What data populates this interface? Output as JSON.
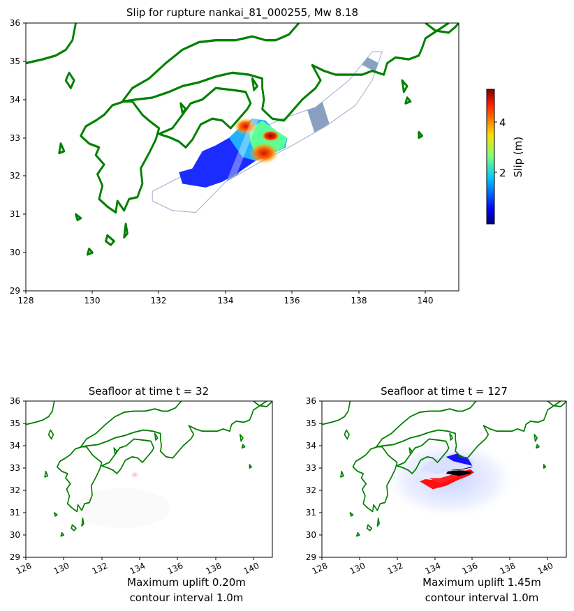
{
  "chart_data": [
    {
      "type": "heatmap",
      "title": "Slip for rupture nankai_81_000255, Mw 8.18",
      "xlim": [
        128,
        141
      ],
      "ylim": [
        29,
        36
      ],
      "xticks": [
        "128",
        "130",
        "132",
        "134",
        "136",
        "138",
        "140"
      ],
      "yticks": [
        "29",
        "30",
        "31",
        "32",
        "33",
        "34",
        "35",
        "36"
      ],
      "colorbar": {
        "label": "Slip (m)",
        "ticks": [
          "2",
          "4"
        ],
        "range": [
          0,
          5.8
        ],
        "colormap": "jet"
      },
      "max_slip_region": {
        "lon": 135.2,
        "lat": 32.6,
        "value": 5.5
      },
      "coastline_color": "#008000"
    },
    {
      "type": "heatmap",
      "title": "Seafloor at time t = 32",
      "xlim": [
        128,
        141
      ],
      "ylim": [
        29,
        36
      ],
      "xticks": [
        "128",
        "130",
        "132",
        "134",
        "136",
        "138",
        "140"
      ],
      "yticks": [
        "29",
        "30",
        "31",
        "32",
        "33",
        "34",
        "35",
        "36"
      ],
      "max_uplift_m": 0.2,
      "contour_interval_m": 1.0,
      "caption": [
        "Maximum uplift 0.20m",
        "contour interval 1.0m"
      ]
    },
    {
      "type": "heatmap",
      "title": "Seafloor at time t = 127",
      "xlim": [
        128,
        141
      ],
      "ylim": [
        29,
        36
      ],
      "xticks": [
        "128",
        "130",
        "132",
        "134",
        "136",
        "138",
        "140"
      ],
      "yticks": [
        "29",
        "30",
        "31",
        "32",
        "33",
        "34",
        "35",
        "36"
      ],
      "max_uplift_m": 1.45,
      "contour_interval_m": 1.0,
      "caption": [
        "Maximum uplift 1.45m",
        "contour interval 1.0m"
      ]
    }
  ]
}
